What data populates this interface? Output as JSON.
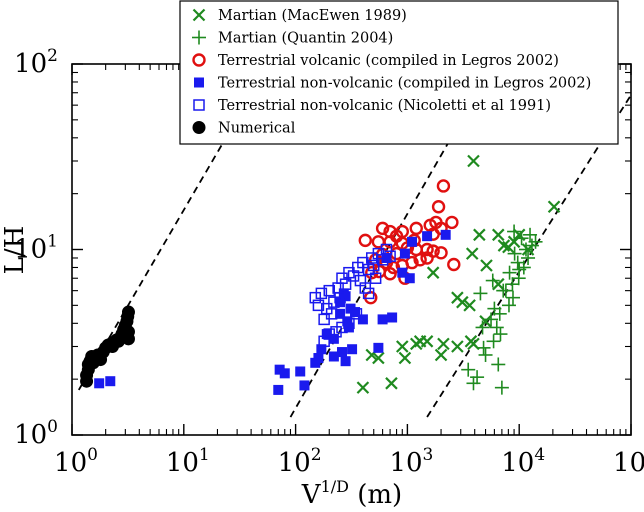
{
  "chart_data": {
    "type": "scatter",
    "x_scale": "log",
    "y_scale": "log",
    "xlim": [
      1,
      100000
    ],
    "ylim": [
      1,
      100
    ],
    "grid": false,
    "legend_placement": "top-right",
    "xlabel": {
      "base": "V",
      "sup": "1/D",
      "rest": " (m)"
    },
    "ylabel": "L/H",
    "x_ticks": [
      {
        "value": 1,
        "base": "10",
        "exp": "0"
      },
      {
        "value": 10,
        "base": "10",
        "exp": "1"
      },
      {
        "value": 100,
        "base": "10",
        "exp": "2"
      },
      {
        "value": 1000,
        "base": "10",
        "exp": "3"
      },
      {
        "value": 10000,
        "base": "10",
        "exp": "4"
      },
      {
        "value": 100000,
        "base": "10",
        "exp": "5"
      }
    ],
    "y_ticks": [
      {
        "value": 1,
        "base": "10",
        "exp": "0"
      },
      {
        "value": 10,
        "base": "10",
        "exp": "1"
      },
      {
        "value": 100,
        "base": "10",
        "exp": "2"
      }
    ],
    "reference_lines": [
      {
        "from": [
          1.15,
          1.75
        ],
        "to": [
          55,
          95
        ]
      },
      {
        "from": [
          90,
          1.25
        ],
        "to": [
          4200,
          70
        ]
      },
      {
        "from": [
          1500,
          1.25
        ],
        "to": [
          100000,
          68
        ]
      }
    ],
    "series": [
      {
        "name": "Martian (MacEwen 1989)",
        "marker": "x",
        "color": "#1f8a1f",
        "points": [
          [
            400,
            1.8
          ],
          [
            720,
            1.9
          ],
          [
            3900,
            30
          ],
          [
            20500,
            17
          ],
          [
            4400,
            12
          ],
          [
            6500,
            12
          ],
          [
            10000,
            12
          ],
          [
            9000,
            11
          ],
          [
            7300,
            10.5
          ],
          [
            3800,
            9.5
          ],
          [
            5100,
            8.2
          ],
          [
            1700,
            7.5
          ],
          [
            2800,
            5.5
          ],
          [
            3100,
            5.2
          ],
          [
            3600,
            5
          ],
          [
            3700,
            3.2
          ],
          [
            3900,
            3.1
          ],
          [
            2800,
            3
          ],
          [
            2100,
            3.1
          ],
          [
            1300,
            3.2
          ],
          [
            1500,
            3.2
          ],
          [
            900,
            3
          ],
          [
            1200,
            3.1
          ],
          [
            950,
            2.6
          ],
          [
            2000,
            2.7
          ],
          [
            550,
            2.6
          ],
          [
            480,
            2.7
          ],
          [
            6500,
            6.5
          ],
          [
            5000,
            4.1
          ],
          [
            8000,
            10.3
          ],
          [
            12000,
            10
          ]
        ]
      },
      {
        "name": "Martian (Quantin 2004)",
        "marker": "plus",
        "color": "#1f8a1f",
        "points": [
          [
            7000,
            1.8
          ],
          [
            3900,
            1.9
          ],
          [
            4200,
            2.05
          ],
          [
            3500,
            2.25
          ],
          [
            6500,
            2.4
          ],
          [
            5000,
            2.7
          ],
          [
            4800,
            2.95
          ],
          [
            5900,
            3.2
          ],
          [
            6800,
            3.5
          ],
          [
            4700,
            3.8
          ],
          [
            5600,
            4.2
          ],
          [
            6700,
            4.5
          ],
          [
            8100,
            5
          ],
          [
            8800,
            5.5
          ],
          [
            7200,
            6
          ],
          [
            8700,
            6.5
          ],
          [
            9900,
            7
          ],
          [
            8200,
            7.5
          ],
          [
            11000,
            8
          ],
          [
            9700,
            8.5
          ],
          [
            12000,
            9
          ],
          [
            9100,
            9.5
          ],
          [
            11500,
            10
          ],
          [
            13000,
            10.5
          ],
          [
            14000,
            11
          ],
          [
            10500,
            11.5
          ],
          [
            12500,
            12
          ],
          [
            9000,
            12.5
          ],
          [
            5800,
            6.8
          ],
          [
            7600,
            6
          ],
          [
            4500,
            5.8
          ],
          [
            6000,
            4.8
          ],
          [
            6300,
            3.8
          ],
          [
            10000,
            7.8
          ]
        ]
      },
      {
        "name": "Terrestrial volcanic (compiled in Legros 2002)",
        "marker": "circle-open",
        "color": "#e01010",
        "points": [
          [
            2100,
            22
          ],
          [
            1900,
            17
          ],
          [
            1800,
            14
          ],
          [
            2500,
            14
          ],
          [
            2000,
            13
          ],
          [
            1600,
            13.5
          ],
          [
            1200,
            13
          ],
          [
            900,
            12.5
          ],
          [
            700,
            12.5
          ],
          [
            600,
            13
          ],
          [
            420,
            11.2
          ],
          [
            550,
            11
          ],
          [
            700,
            11
          ],
          [
            900,
            10.8
          ],
          [
            1000,
            10.2
          ],
          [
            1200,
            10
          ],
          [
            1500,
            10
          ],
          [
            1700,
            9.8
          ],
          [
            2000,
            9.6
          ],
          [
            800,
            9.5
          ],
          [
            600,
            9.4
          ],
          [
            520,
            8.8
          ],
          [
            650,
            8.5
          ],
          [
            750,
            8
          ],
          [
            900,
            8.2
          ],
          [
            1100,
            8.5
          ],
          [
            1300,
            8.8
          ],
          [
            1500,
            9
          ],
          [
            2600,
            8.3
          ],
          [
            480,
            7.5
          ],
          [
            560,
            7.6
          ],
          [
            700,
            7.4
          ],
          [
            950,
            7
          ],
          [
            470,
            5.5
          ],
          [
            800,
            11.8
          ],
          [
            1150,
            11.2
          ],
          [
            1700,
            12.1
          ]
        ]
      },
      {
        "name": "Terrestrial non-volcanic (compiled in Legros 2002)",
        "marker": "square-filled",
        "color": "#1a1aee",
        "points": [
          [
            2.2,
            1.95
          ],
          [
            1.75,
            1.9
          ],
          [
            70,
            1.75
          ],
          [
            72,
            2.25
          ],
          [
            80,
            2.15
          ],
          [
            110,
            2.2
          ],
          [
            120,
            1.85
          ],
          [
            150,
            2.45
          ],
          [
            160,
            2.6
          ],
          [
            170,
            2.9
          ],
          [
            190,
            3.5
          ],
          [
            220,
            2.65
          ],
          [
            260,
            2.8
          ],
          [
            280,
            2.5
          ],
          [
            320,
            2.9
          ],
          [
            550,
            2.95
          ],
          [
            220,
            3.3
          ],
          [
            250,
            4.5
          ],
          [
            290,
            4.1
          ],
          [
            300,
            3.8
          ],
          [
            250,
            5.2
          ],
          [
            280,
            5.6
          ],
          [
            310,
            4.8
          ],
          [
            400,
            4.2
          ],
          [
            600,
            4.2
          ],
          [
            730,
            4.3
          ],
          [
            900,
            7.5
          ],
          [
            1050,
            7
          ],
          [
            1100,
            11
          ],
          [
            2200,
            12
          ],
          [
            1500,
            11.8
          ],
          [
            650,
            9
          ],
          [
            950,
            9.5
          ],
          [
            270,
            5.8
          ],
          [
            340,
            4.6
          ]
        ]
      },
      {
        "name": "Terrestrial non-volcanic (Nicoletti et al 1991)",
        "marker": "square-open",
        "color": "#1a1aee",
        "points": [
          [
            150,
            5.5
          ],
          [
            160,
            5.0
          ],
          [
            170,
            5.8
          ],
          [
            190,
            4.8
          ],
          [
            200,
            6.0
          ],
          [
            210,
            4.5
          ],
          [
            220,
            5.2
          ],
          [
            240,
            6.2
          ],
          [
            250,
            5.5
          ],
          [
            260,
            7.0
          ],
          [
            280,
            6.5
          ],
          [
            300,
            7.5
          ],
          [
            330,
            7.2
          ],
          [
            360,
            8.0
          ],
          [
            380,
            6.8
          ],
          [
            400,
            8.5
          ],
          [
            450,
            7.8
          ],
          [
            480,
            9.0
          ],
          [
            500,
            8.2
          ],
          [
            550,
            9.5
          ],
          [
            600,
            8.8
          ],
          [
            650,
            10.0
          ],
          [
            700,
            9.2
          ],
          [
            450,
            5.8
          ],
          [
            350,
            4.5
          ],
          [
            300,
            4.0
          ],
          [
            260,
            3.8
          ],
          [
            230,
            3.6
          ],
          [
            180,
            4.2
          ],
          [
            200,
            3.5
          ],
          [
            180,
            3.2
          ],
          [
            420,
            6.2
          ],
          [
            520,
            7.0
          ]
        ]
      },
      {
        "name": "Numerical",
        "marker": "circle-filled",
        "color": "#000000",
        "points": [
          [
            1.35,
            1.95
          ],
          [
            1.35,
            2.1
          ],
          [
            1.4,
            2.25
          ],
          [
            1.4,
            2.4
          ],
          [
            1.45,
            2.5
          ],
          [
            1.5,
            2.65
          ],
          [
            1.7,
            2.7
          ],
          [
            1.9,
            2.8
          ],
          [
            2.0,
            2.95
          ],
          [
            2.1,
            3.05
          ],
          [
            2.3,
            3.15
          ],
          [
            2.5,
            3.25
          ],
          [
            2.7,
            3.35
          ],
          [
            2.8,
            3.5
          ],
          [
            2.9,
            3.7
          ],
          [
            3.0,
            3.9
          ],
          [
            3.1,
            4.1
          ],
          [
            3.15,
            4.35
          ],
          [
            3.2,
            4.6
          ],
          [
            3.2,
            3.3
          ],
          [
            3.2,
            3.6
          ],
          [
            3.1,
            3.45
          ],
          [
            2.95,
            3.55
          ],
          [
            2.6,
            3.2
          ],
          [
            2.3,
            3.0
          ],
          [
            1.8,
            2.55
          ],
          [
            1.55,
            2.45
          ]
        ]
      }
    ]
  }
}
